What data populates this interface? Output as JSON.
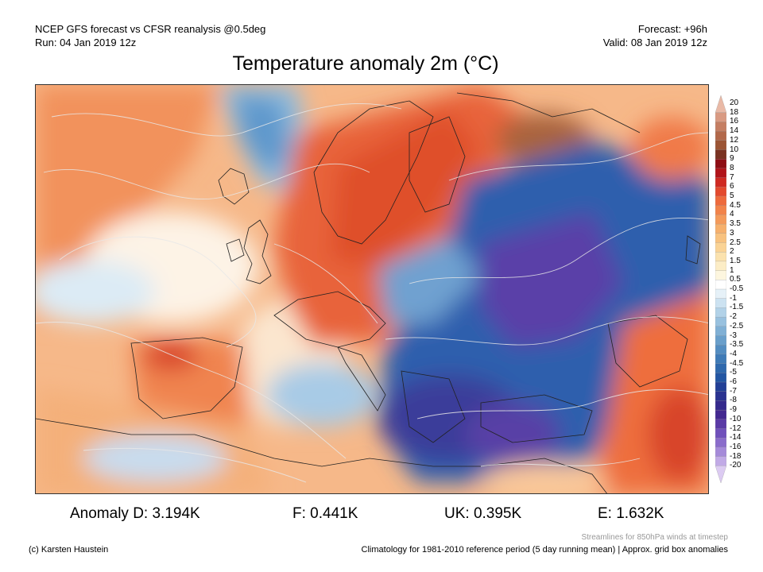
{
  "header": {
    "line1": "NCEP GFS forecast vs CFSR reanalysis @0.5deg",
    "line2": "Run: 04 Jan 2019 12z",
    "forecast": "Forecast: +96h",
    "valid": "Valid: 08 Jan 2019 12z"
  },
  "title": "Temperature anomaly 2m (°C)",
  "colorbar": {
    "labels": [
      "20",
      "18",
      "16",
      "14",
      "12",
      "10",
      "9",
      "8",
      "7",
      "6",
      "5",
      "4.5",
      "4",
      "3.5",
      "3",
      "2.5",
      "2",
      "1.5",
      "1",
      "0.5",
      "-0.5",
      "-1",
      "-1.5",
      "-2",
      "-2.5",
      "-3",
      "-3.5",
      "-4",
      "-4.5",
      "-5",
      "-6",
      "-7",
      "-8",
      "-9",
      "-10",
      "-12",
      "-14",
      "-16",
      "-18",
      "-20"
    ],
    "colors": [
      "#e9b9a6",
      "#d99a82",
      "#c57e62",
      "#b2684a",
      "#9c5535",
      "#7a3322",
      "#8e0e14",
      "#b1141a",
      "#cf2a22",
      "#e34a2e",
      "#ee6a3c",
      "#f2834a",
      "#f49a5a",
      "#f6b06c",
      "#f8c27f",
      "#fad395",
      "#fbe2ae",
      "#fcedc6",
      "#fdf6df",
      "#ffffff",
      "#e6f1f8",
      "#cce2f1",
      "#b2d2e8",
      "#98c1df",
      "#80b0d5",
      "#699fcb",
      "#538dc1",
      "#3f7bb7",
      "#2f69ad",
      "#2356a3",
      "#223f96",
      "#2a3390",
      "#352a8c",
      "#432890",
      "#5a3aa6",
      "#7050bb",
      "#8a6ccb",
      "#a58ad9",
      "#c1aae6",
      "#dccbf2"
    ]
  },
  "anomalies": {
    "d": "Anomaly D: 3.194K",
    "f": "F: 0.441K",
    "uk": "UK: 0.395K",
    "e": "E: 1.632K"
  },
  "footer": {
    "credit": "(c) Karsten Haustein",
    "streamlines": "Streamlines for 850hPa winds at timestep",
    "climatology": "Climatology for 1981-2010 reference period (5 day running mean) | Approx. grid box anomalies"
  }
}
